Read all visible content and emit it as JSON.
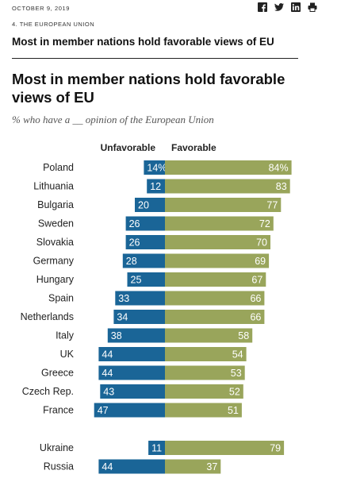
{
  "header": {
    "date": "OCTOBER 9, 2019",
    "section": "4. THE EUROPEAN UNION",
    "page_title": "Most in member nations hold favorable views of EU",
    "share_icons": [
      "facebook-icon",
      "twitter-icon",
      "linkedin-icon",
      "print-icon"
    ]
  },
  "chart_data": {
    "type": "bar",
    "title": "Most in member nations hold favorable views of EU",
    "subtitle": "% who have a __ opinion of the European Union",
    "categories": [
      "Poland",
      "Lithuania",
      "Bulgaria",
      "Sweden",
      "Slovakia",
      "Germany",
      "Hungary",
      "Spain",
      "Netherlands",
      "Italy",
      "UK",
      "Greece",
      "Czech Rep.",
      "France",
      "Ukraine",
      "Russia"
    ],
    "series": [
      {
        "name": "Unfavorable",
        "color": "#1a6597",
        "values": [
          14,
          12,
          20,
          26,
          26,
          28,
          25,
          33,
          34,
          38,
          44,
          44,
          43,
          47,
          11,
          44
        ],
        "labels": [
          "14%",
          "12",
          "20",
          "26",
          "26",
          "28",
          "25",
          "33",
          "34",
          "38",
          "44",
          "44",
          "43",
          "47",
          "11",
          "44"
        ]
      },
      {
        "name": "Favorable",
        "color": "#99a55b",
        "values": [
          84,
          83,
          77,
          72,
          70,
          69,
          67,
          66,
          66,
          58,
          54,
          53,
          52,
          51,
          79,
          37
        ],
        "labels": [
          "84%",
          "83",
          "77",
          "72",
          "70",
          "69",
          "67",
          "66",
          "66",
          "58",
          "54",
          "53",
          "52",
          "51",
          "79",
          "37"
        ]
      }
    ],
    "groups": [
      {
        "categories": [
          "Poland",
          "Lithuania",
          "Bulgaria",
          "Sweden",
          "Slovakia",
          "Germany",
          "Hungary",
          "Spain",
          "Netherlands",
          "Italy",
          "UK",
          "Greece",
          "Czech Rep.",
          "France"
        ]
      },
      {
        "categories": [
          "Ukraine",
          "Russia"
        ]
      }
    ],
    "xlim": [
      0,
      100
    ],
    "grid": false,
    "legend": "column headers above bars"
  }
}
